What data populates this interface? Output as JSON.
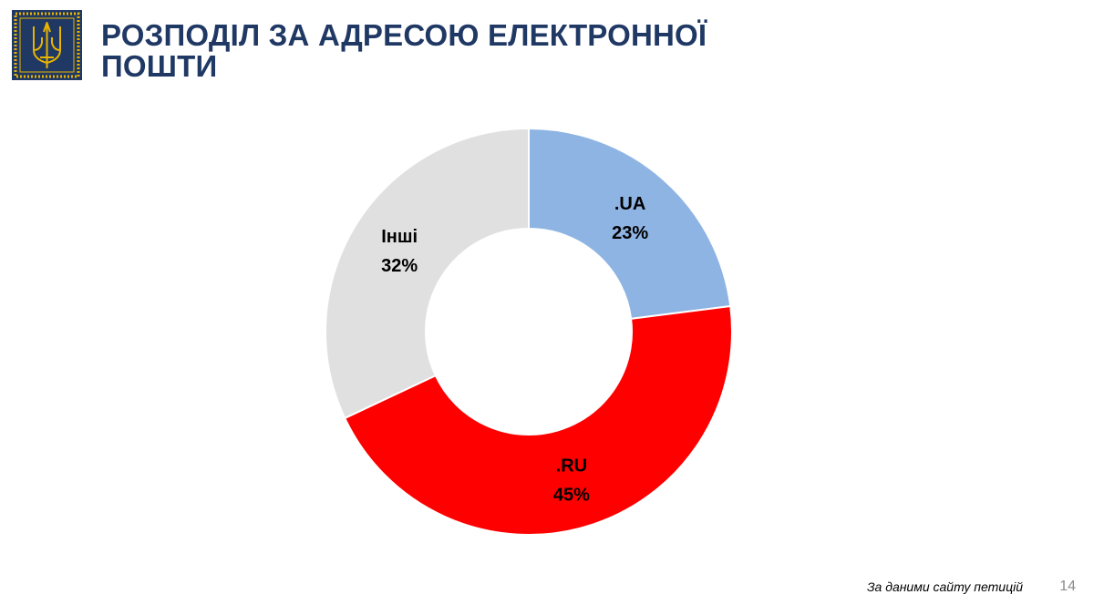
{
  "header": {
    "title": "РОЗПОДІЛ ЗА АДРЕСОЮ ЕЛЕКТРОННОЇ ПОШТИ",
    "emblem_icon": "trident-emblem-icon"
  },
  "chart_data": {
    "type": "pie",
    "donut": true,
    "title": "",
    "categories": [
      ".UA",
      ".RU",
      "Інші"
    ],
    "values": [
      23,
      45,
      32
    ],
    "value_labels": [
      "23%",
      "45%",
      "32%"
    ],
    "colors": [
      "#8eb4e3",
      "#ff0000",
      "#e0e0e0"
    ],
    "start": "12 o'clock",
    "direction": "clockwise",
    "legend": "none"
  },
  "footer": {
    "source": "За даними сайту петицій",
    "page_number": "14"
  },
  "colors": {
    "title": "#1f3864",
    "emblem_background": "#1f3864",
    "emblem_gold": "#e8b400"
  }
}
